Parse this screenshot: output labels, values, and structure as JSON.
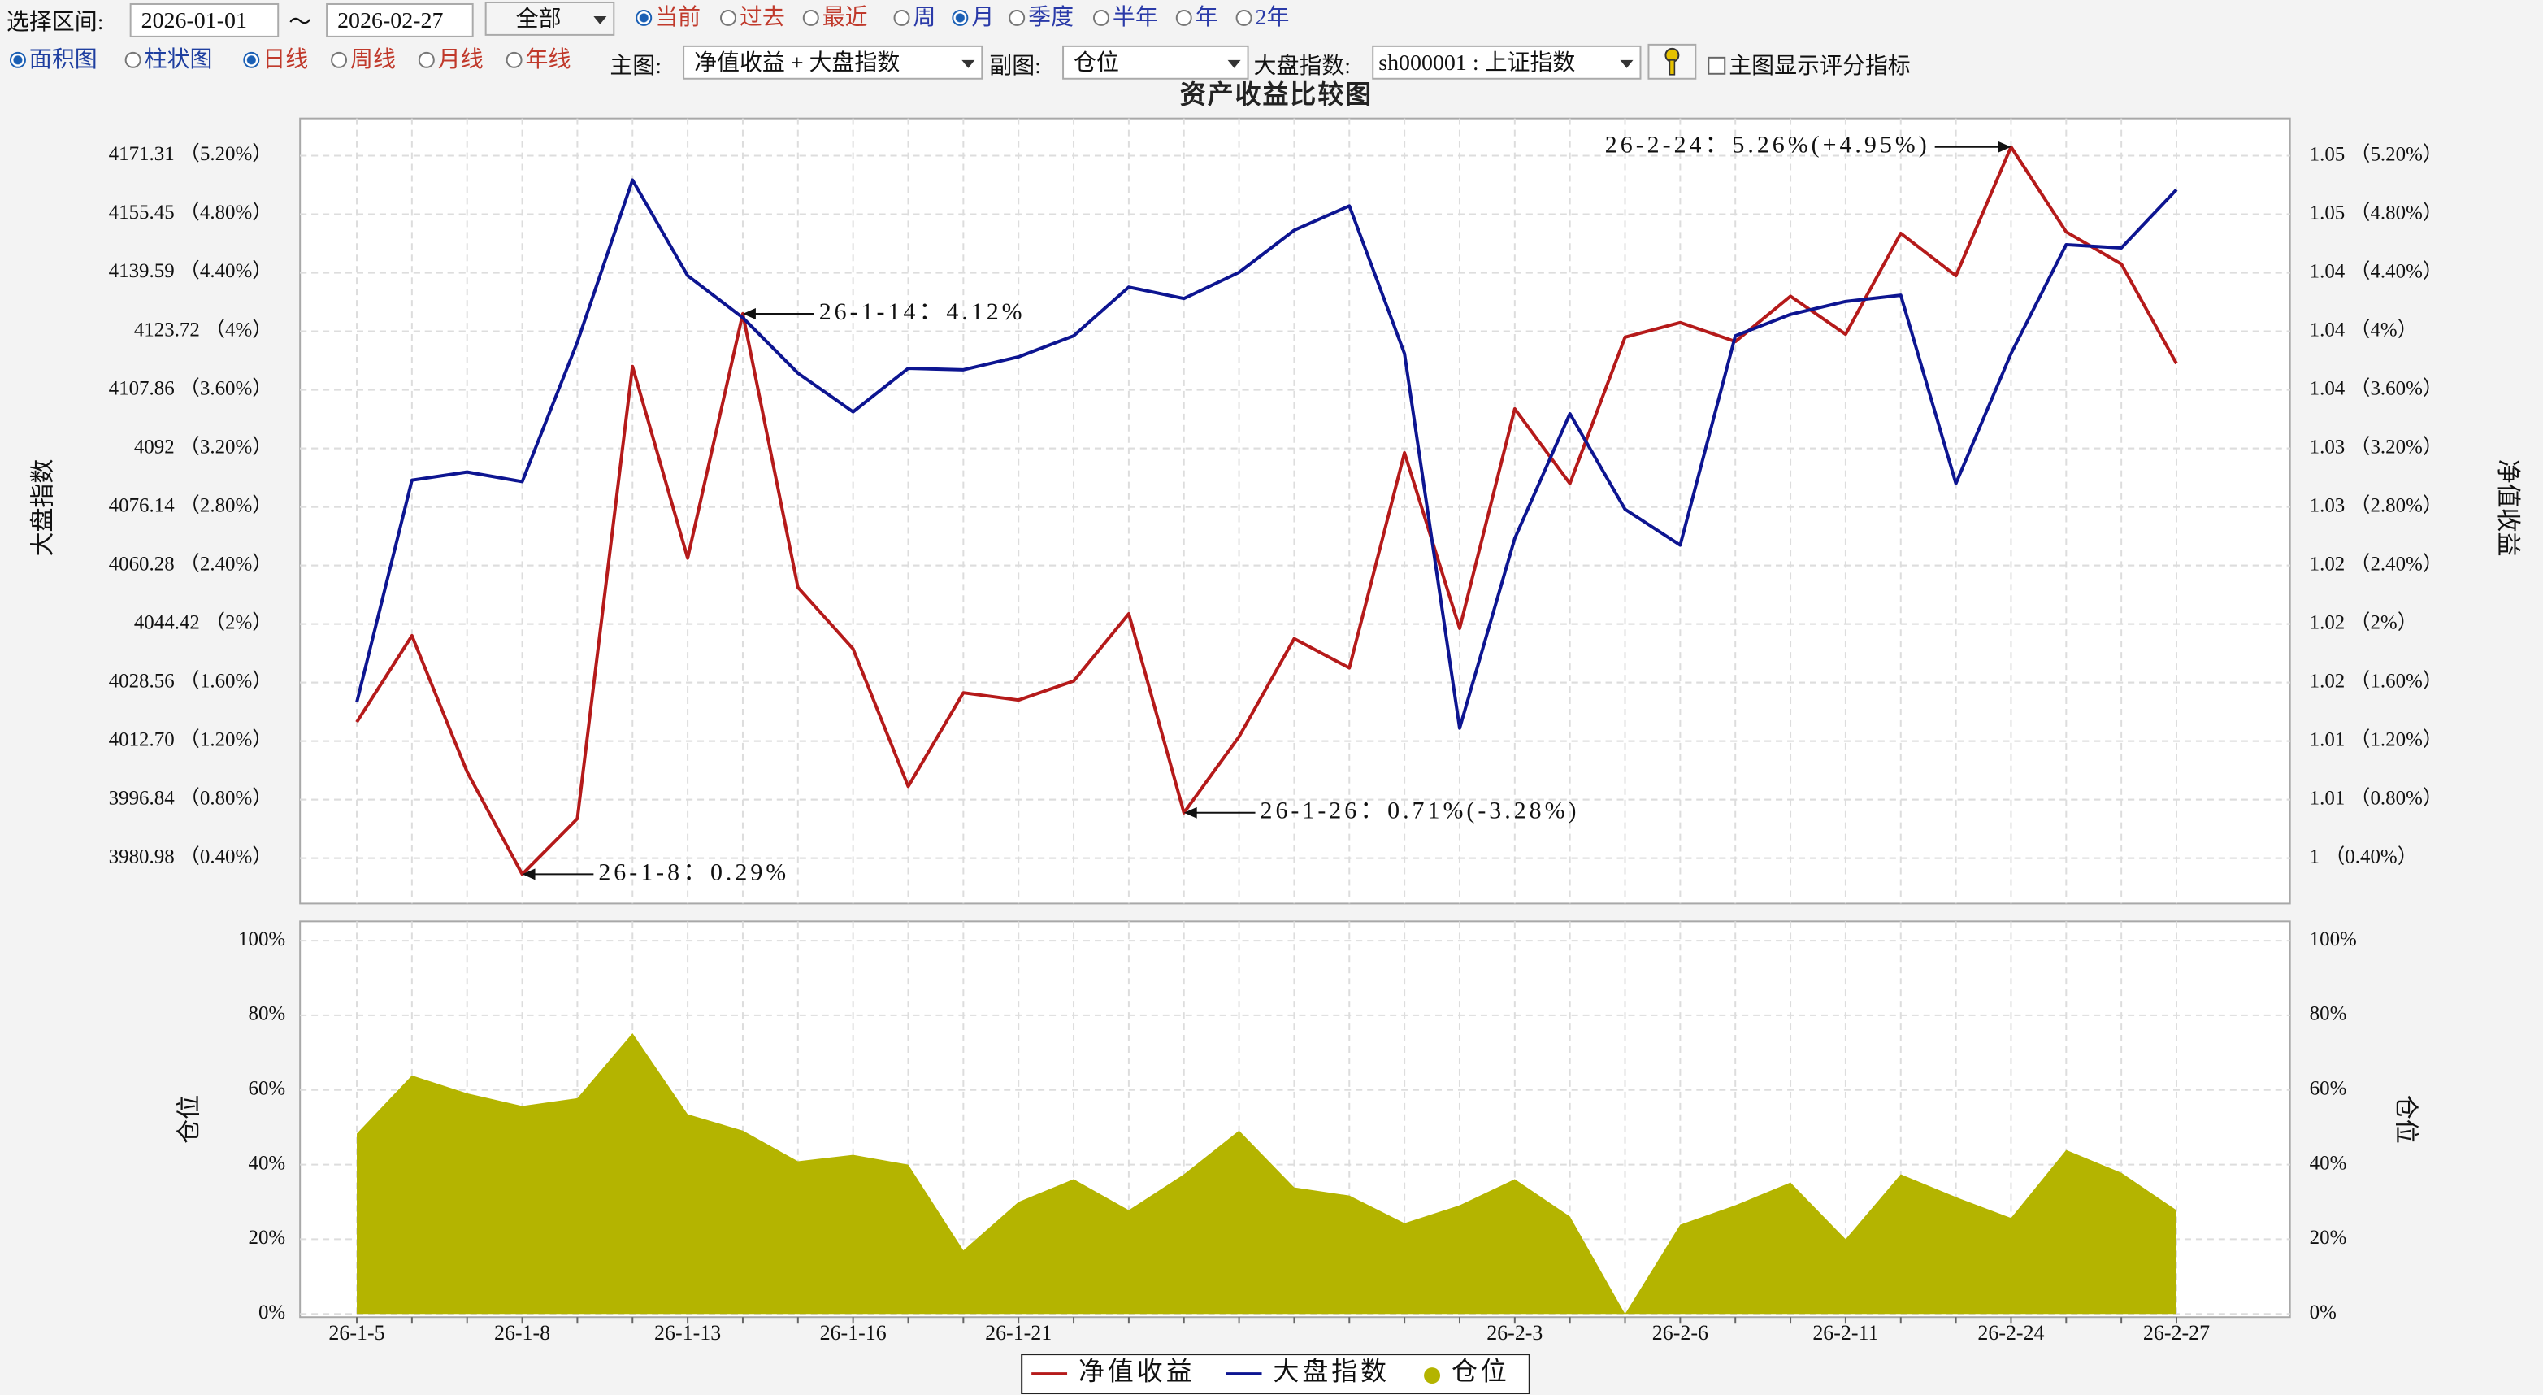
{
  "toolbar": {
    "range_label": "选择区间:",
    "start_date": "2026-01-01",
    "separator": "～",
    "end_date": "2026-02-27",
    "range_select": "全部",
    "period_options": [
      {
        "label": "当前",
        "checked": true
      },
      {
        "label": "过去",
        "checked": false
      },
      {
        "label": "最近",
        "checked": false
      }
    ],
    "unit_options": [
      {
        "label": "周",
        "checked": false
      },
      {
        "label": "月",
        "checked": true
      },
      {
        "label": "季度",
        "checked": false
      },
      {
        "label": "半年",
        "checked": false
      },
      {
        "label": "年",
        "checked": false
      },
      {
        "label": "2年",
        "checked": false
      }
    ],
    "chart_styles": [
      {
        "label": "面积图",
        "checked": true
      },
      {
        "label": "柱状图",
        "checked": false
      }
    ],
    "frequency_options": [
      {
        "label": "日线",
        "checked": true
      },
      {
        "label": "周线",
        "checked": false
      },
      {
        "label": "月线",
        "checked": false
      },
      {
        "label": "年线",
        "checked": false
      }
    ],
    "main_chart_label": "主图:",
    "main_chart": "净值收益 + 大盘指数",
    "sub_chart_label": "副图:",
    "sub_chart": "仓位",
    "index_label": "大盘指数:",
    "index_select": "sh000001 : 上证指数",
    "show_score_label": "主图显示评分指标",
    "show_score_checked": false
  },
  "chart_data": [
    {
      "type": "line",
      "title": "资产收益比较图",
      "ylabel": "大盘指数",
      "y2label": "净值收益",
      "grid": true,
      "ylim": [
        3968.7,
        4181.4
      ],
      "yticks": [
        {
          "value": 3980.98,
          "label": "3980.98 （0.40%）"
        },
        {
          "value": 3996.84,
          "label": "3996.84 （0.80%）"
        },
        {
          "value": 4012.7,
          "label": "4012.70 （1.20%）"
        },
        {
          "value": 4028.56,
          "label": "4028.56 （1.60%）"
        },
        {
          "value": 4044.42,
          "label": "4044.42 （2%）"
        },
        {
          "value": 4060.28,
          "label": "4060.28 （2.40%）"
        },
        {
          "value": 4076.14,
          "label": "4076.14 （2.80%）"
        },
        {
          "value": 4092,
          "label": "4092 （3.20%）"
        },
        {
          "value": 4107.86,
          "label": "4107.86 （3.60%）"
        },
        {
          "value": 4123.72,
          "label": "4123.72 （4%）"
        },
        {
          "value": 4139.59,
          "label": "4139.59 （4.40%）"
        },
        {
          "value": 4155.45,
          "label": "4155.45 （4.80%）"
        },
        {
          "value": 4171.31,
          "label": "4171.31 （5.20%）"
        }
      ],
      "y2lim": [
        0.09,
        5.455
      ],
      "y2ticks": [
        {
          "value": 0.4,
          "label": "1 （0.40%）"
        },
        {
          "value": 0.8,
          "label": "1.01 （0.80%）"
        },
        {
          "value": 1.2,
          "label": "1.01 （1.20%）"
        },
        {
          "value": 1.6,
          "label": "1.02 （1.60%）"
        },
        {
          "value": 2,
          "label": "1.02 （2%）"
        },
        {
          "value": 2.4,
          "label": "1.02 （2.40%）"
        },
        {
          "value": 2.8,
          "label": "1.03 （2.80%）"
        },
        {
          "value": 3.2,
          "label": "1.03 （3.20%）"
        },
        {
          "value": 3.6,
          "label": "1.04 （3.60%）"
        },
        {
          "value": 4,
          "label": "1.04 （4%）"
        },
        {
          "value": 4.4,
          "label": "1.04 （4.40%）"
        },
        {
          "value": 4.8,
          "label": "1.05 （4.80%）"
        },
        {
          "value": 5.2,
          "label": "1.05 （5.20%）"
        }
      ],
      "series": [
        {
          "name": "净值收益",
          "color": "#b51a1a",
          "axis": "y2",
          "values": [
            1.33,
            1.92,
            0.99,
            0.29,
            0.67,
            3.76,
            2.45,
            4.12,
            2.25,
            1.83,
            0.89,
            1.53,
            1.48,
            1.61,
            2.07,
            0.71,
            1.23,
            1.9,
            1.7,
            3.17,
            1.97,
            3.47,
            2.96,
            3.96,
            4.06,
            3.93,
            4.24,
            3.98,
            4.67,
            4.38,
            5.26,
            4.68,
            4.46,
            3.78
          ]
        },
        {
          "name": "大盘指数",
          "color": "#0d1591",
          "values": [
            4023.2,
            4083.4,
            4085.6,
            4083.0,
            4120.8,
            4164.7,
            4138.8,
            4127.4,
            4112.4,
            4101.9,
            4113.7,
            4113.3,
            4116.8,
            4122.5,
            4135.7,
            4132.6,
            4139.7,
            4151.1,
            4157.7,
            4117.7,
            4016.2,
            4067.6,
            4101.4,
            4075.5,
            4065.8,
            4122.5,
            4128.3,
            4131.8,
            4133.5,
            4082.5,
            4117.7,
            4147.2,
            4146.3,
            4162.1
          ]
        }
      ],
      "annotations": [
        "26-2-24：5.26%(+4.95%)",
        "26-1-14：4.12%",
        "26-1-26：0.71%(-3.28%)",
        "26-1-8：0.29%"
      ]
    },
    {
      "type": "area",
      "ylabel": "仓位",
      "y2label": "仓位",
      "grid": true,
      "categories": [
        "26-1-5",
        null,
        null,
        "26-1-8",
        null,
        null,
        "26-1-13",
        null,
        null,
        "26-1-16",
        null,
        null,
        "26-1-21",
        null,
        null,
        null,
        null,
        null,
        null,
        null,
        null,
        "26-2-3",
        null,
        null,
        "26-2-6",
        null,
        null,
        "26-2-11",
        null,
        null,
        "26-2-24",
        null,
        null,
        "26-2-27"
      ],
      "ylim": [
        0,
        104.3
      ],
      "yticks": [
        {
          "value": 0,
          "label": "0%"
        },
        {
          "value": 20,
          "label": "20%"
        },
        {
          "value": 40,
          "label": "40%"
        },
        {
          "value": 60,
          "label": "60%"
        },
        {
          "value": 80,
          "label": "80%"
        },
        {
          "value": 100,
          "label": "100%"
        }
      ],
      "series": [
        {
          "name": "仓位",
          "color": "#b4b400",
          "values": [
            48.3,
            63.9,
            59.1,
            55.7,
            57.8,
            75.2,
            53.5,
            49.1,
            40.9,
            42.6,
            40.0,
            17.0,
            30.0,
            36.1,
            27.8,
            37.4,
            49.1,
            33.9,
            31.7,
            24.3,
            29.1,
            36.1,
            26.1,
            0,
            23.9,
            29.1,
            35.2,
            20.0,
            37.4,
            31.3,
            25.7,
            43.9,
            37.8,
            27.8
          ]
        }
      ]
    }
  ]
}
